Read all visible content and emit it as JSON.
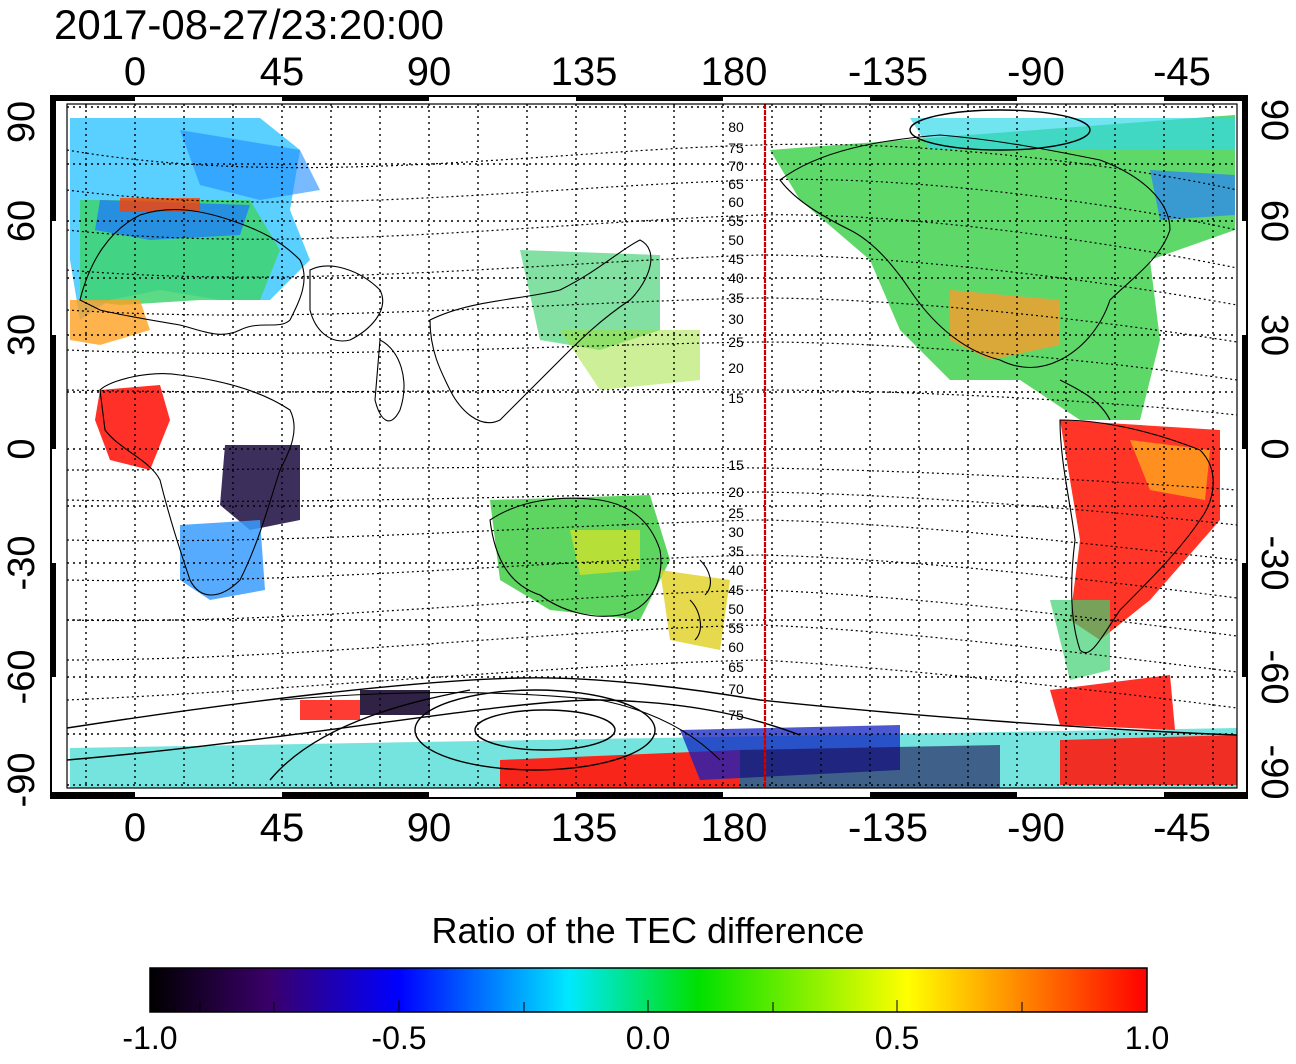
{
  "title": "2017-08-27/23:20:00",
  "top_lon_labels": [
    "0",
    "45",
    "90",
    "135",
    "180",
    "-135",
    "-90",
    "-45"
  ],
  "bottom_lon_labels": [
    "0",
    "45",
    "90",
    "135",
    "180",
    "-135",
    "-90",
    "-45"
  ],
  "left_lat_labels": [
    "90",
    "60",
    "30",
    "0",
    "-30",
    "-60",
    "-90"
  ],
  "right_lat_labels": [
    "90",
    "60",
    "30",
    "0",
    "-30",
    "-60",
    "-90"
  ],
  "mlat_labels_north": [
    "80",
    "75",
    "70",
    "65",
    "60",
    "55",
    "50",
    "45",
    "40",
    "35",
    "30",
    "25",
    "20",
    "15"
  ],
  "mlat_labels_south": [
    "15",
    "20",
    "25",
    "30",
    "35",
    "40",
    "45",
    "50",
    "55",
    "60",
    "65",
    "70",
    "75"
  ],
  "colorbar": {
    "title": "Ratio of the TEC difference",
    "ticks": [
      "-1.0",
      "-0.5",
      "0.0",
      "0.5",
      "1.0"
    ],
    "range": [
      -1.0,
      1.0
    ],
    "stops": [
      "#000000",
      "#3a006a",
      "#0000ff",
      "#00e8ff",
      "#00e000",
      "#ffff00",
      "#ff8000",
      "#ff0000"
    ]
  },
  "map": {
    "lon_range": [
      -25,
      335
    ],
    "lat_range": [
      -90,
      90
    ],
    "grid_spacing_deg": 15,
    "terminator_line_color": "#cc0000",
    "terminator_lon": 190
  }
}
